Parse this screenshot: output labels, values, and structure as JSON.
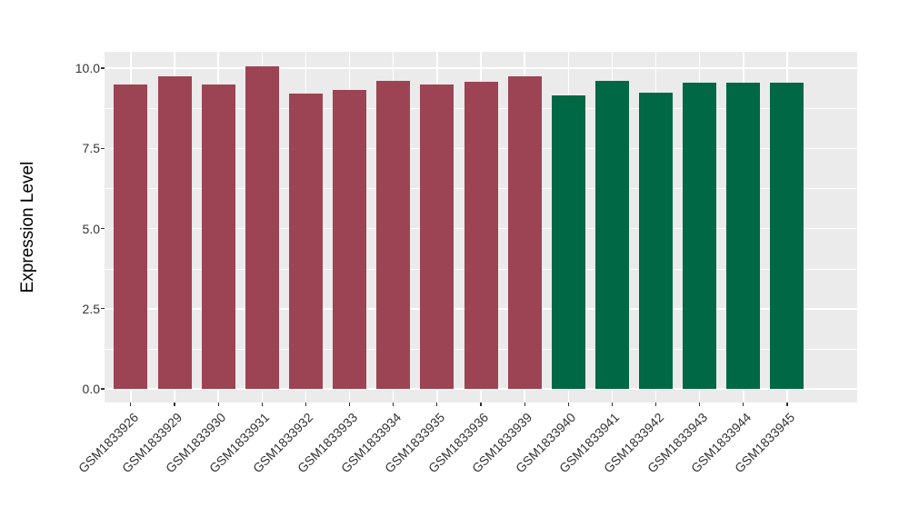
{
  "chart_data": {
    "type": "bar",
    "title": "",
    "ylabel": "Expression Level",
    "xlabel": "",
    "categories": [
      "GSM1833926",
      "GSM1833929",
      "GSM1833930",
      "GSM1833931",
      "GSM1833932",
      "GSM1833933",
      "GSM1833934",
      "GSM1833935",
      "GSM1833936",
      "GSM1833939",
      "GSM1833940",
      "GSM1833941",
      "GSM1833942",
      "GSM1833943",
      "GSM1833944",
      "GSM1833945"
    ],
    "values": [
      9.49,
      9.75,
      9.5,
      10.05,
      9.22,
      9.33,
      9.61,
      9.5,
      9.57,
      9.75,
      9.15,
      9.61,
      9.24,
      9.56,
      9.54,
      9.54
    ],
    "bar_colors": [
      "#9C4454",
      "#9C4454",
      "#9C4454",
      "#9C4454",
      "#9C4454",
      "#9C4454",
      "#9C4454",
      "#9C4454",
      "#9C4454",
      "#9C4454",
      "#006845",
      "#006845",
      "#006845",
      "#006845",
      "#006845",
      "#006845"
    ],
    "groups": [
      {
        "color": "#9C4454",
        "count": 10
      },
      {
        "color": "#006845",
        "count": 6
      }
    ],
    "ylim": [
      -0.45,
      10.5
    ],
    "yticks": [
      0,
      2.5,
      5,
      7.5,
      10
    ],
    "ytick_labels": [
      "0.0",
      "2.5",
      "5.0",
      "7.5",
      "10.0"
    ],
    "minor_yticks": [
      1.25,
      3.75,
      6.25,
      8.75
    ],
    "grid": true,
    "legend_position": "none",
    "x_label_rotation": -45,
    "colors": {
      "panel_background": "#EBEBEB",
      "grid": "#FFFFFF",
      "tick_label": "#333333",
      "axis_title": "#000000"
    }
  }
}
